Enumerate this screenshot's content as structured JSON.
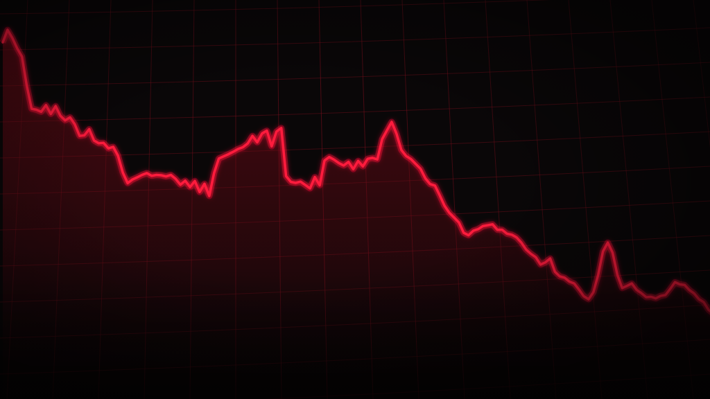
{
  "colors": {
    "background": "#0a0708",
    "line": "#ff1a3c",
    "line_glow": "#ff0030",
    "grid": "#7a0f1c",
    "area_fill": "#8a0c1a"
  },
  "chart_data": {
    "type": "line",
    "title": "",
    "xlabel": "",
    "ylabel": "",
    "grid": true,
    "axes_visible": false,
    "xlim": [
      0,
      147
    ],
    "ylim": [
      0,
      100
    ],
    "series": [
      {
        "values": [
          90.2,
          94.3,
          91.6,
          88.2,
          85.5,
          76.0,
          68.4,
          68.1,
          67.4,
          69.6,
          66.7,
          69.3,
          66.1,
          64.6,
          65.6,
          63.3,
          59.5,
          59.7,
          61.7,
          58.0,
          57.1,
          57.2,
          55.4,
          55.9,
          53.0,
          47.5,
          44.0,
          45.2,
          45.9,
          46.7,
          47.3,
          46.4,
          46.7,
          46.6,
          46.2,
          46.7,
          45.4,
          43.5,
          44.8,
          42.7,
          44.7,
          41.1,
          43.8,
          39.8,
          47.3,
          52.1,
          52.8,
          53.5,
          54.3,
          55.2,
          55.8,
          57.0,
          59.5,
          57.4,
          60.3,
          61.2,
          56.1,
          60.9,
          62.1,
          46.3,
          44.4,
          44.1,
          44.5,
          43.4,
          42.3,
          46.0,
          43.3,
          51.4,
          52.6,
          51.7,
          50.6,
          49.8,
          51.0,
          48.6,
          51.3,
          49.5,
          52.0,
          52.3,
          51.8,
          58.4,
          61.3,
          64.1,
          60.2,
          54.9,
          52.9,
          51.9,
          50.3,
          48.7,
          45.6,
          43.7,
          43.2,
          40.0,
          36.6,
          34.3,
          32.7,
          31.1,
          27.7,
          26.9,
          28.4,
          28.9,
          29.9,
          30.2,
          30.5,
          28.7,
          28.7,
          27.4,
          27.1,
          26.2,
          24.5,
          22.2,
          20.8,
          19.7,
          17.3,
          18.0,
          19.3,
          14.9,
          13.4,
          13.0,
          11.7,
          11.1,
          9.1,
          6.9,
          5.9,
          8.2,
          13.9,
          21.6,
          24.5,
          21.2,
          13.9,
          9.6,
          10.3,
          11.1,
          9.0,
          7.9,
          6.6,
          6.7,
          6.2,
          7.0,
          7.3,
          9.3,
          11.5,
          10.8,
          10.6,
          8.9,
          7.8,
          5.9,
          4.9,
          2.4,
          1.2,
          1.1,
          -1.4,
          -5.7
        ]
      }
    ]
  }
}
